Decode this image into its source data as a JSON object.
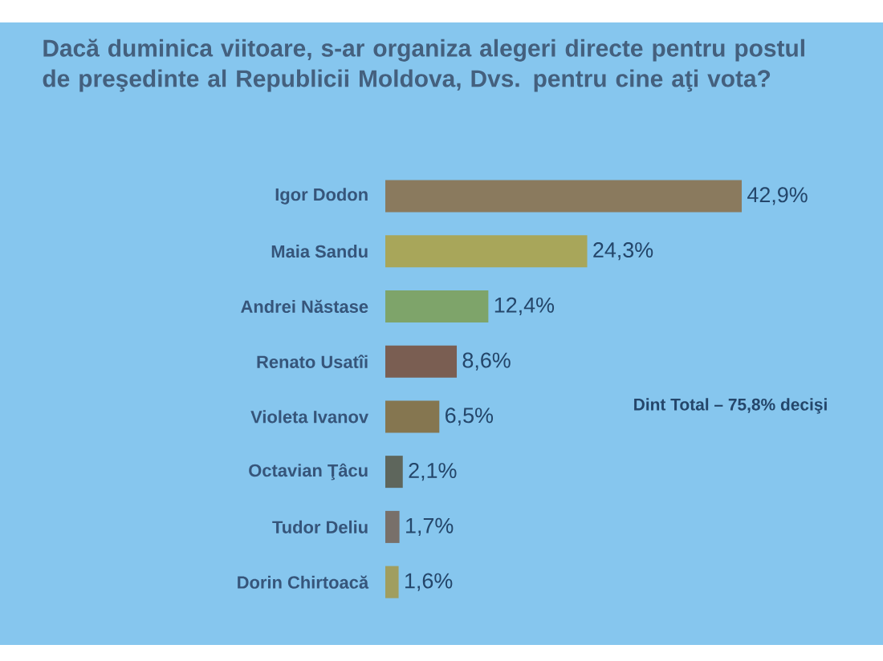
{
  "chart_data": {
    "type": "bar",
    "orientation": "horizontal",
    "title": "Dacă duminica viitoare, s-ar organiza alegeri directe pentru postul de preşedinte al Republicii Moldova, Dvs. pentru cine aţi vota?",
    "categories": [
      "Igor Dodon",
      "Maia Sandu",
      "Andrei Năstase",
      "Renato Usatîi",
      "Violeta Ivanov",
      "Octavian Ţâcu",
      "Tudor Deliu",
      "Dorin Chirtoacă"
    ],
    "values": [
      42.9,
      24.3,
      12.4,
      8.6,
      6.5,
      2.1,
      1.7,
      1.6
    ],
    "colors": [
      "#8a7a5e",
      "#a8a65a",
      "#7ea46a",
      "#7a5e52",
      "#857650",
      "#5e665c",
      "#78706a",
      "#a09e60"
    ],
    "value_labels": [
      "42,9%",
      "24,3%",
      "12,4%",
      "8,6%",
      "6,5%",
      "2,1%",
      "1,7%",
      "1,6%"
    ],
    "tick_labels": "y",
    "annotations": [
      "Dint Total – 75,8% decişi"
    ]
  }
}
